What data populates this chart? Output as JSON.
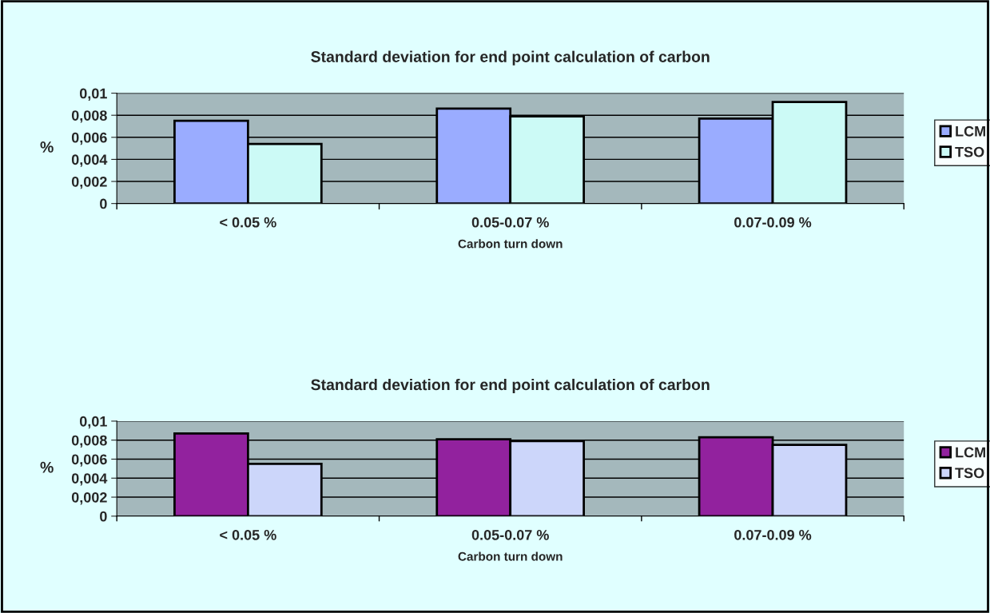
{
  "chart_data": [
    {
      "type": "bar",
      "title": "Standard deviation for end point calculation of carbon",
      "xlabel": "Carbon turn down",
      "ylabel": "%",
      "categories": [
        "< 0.05 %",
        "0.05-0.07 %",
        "0.07-0.09 %"
      ],
      "series": [
        {
          "name": "LCM",
          "color": "#9aacff",
          "values": [
            0.0075,
            0.0086,
            0.0077
          ]
        },
        {
          "name": "TSO",
          "color": "#ccfaf6",
          "values": [
            0.0054,
            0.0079,
            0.0092
          ]
        }
      ],
      "ylim": [
        0,
        0.01
      ],
      "yticks": [
        0,
        {
          "value": 0.002,
          "label": "0,002"
        },
        {
          "value": 0.004,
          "label": "0,004"
        },
        {
          "value": 0.006,
          "label": "0,006"
        },
        {
          "value": 0.008,
          "label": "0,008"
        },
        {
          "value": 0.01,
          "label": "0,01"
        }
      ],
      "grid": "y",
      "legend": "right"
    },
    {
      "type": "bar",
      "title": "Standard deviation for end point calculation of carbon",
      "xlabel": "Carbon turn down",
      "ylabel": "%",
      "categories": [
        "< 0.05 %",
        "0.05-0.07 %",
        "0.07-0.09 %"
      ],
      "series": [
        {
          "name": "LCM",
          "color": "#92229e",
          "values": [
            0.0087,
            0.0081,
            0.0083
          ]
        },
        {
          "name": "TSO",
          "color": "#ccd6fa",
          "values": [
            0.0055,
            0.0079,
            0.0075
          ]
        }
      ],
      "ylim": [
        0,
        0.01
      ],
      "yticks": [
        0,
        {
          "value": 0.002,
          "label": "0,002"
        },
        {
          "value": 0.004,
          "label": "0,004"
        },
        {
          "value": 0.006,
          "label": "0,006"
        },
        {
          "value": 0.008,
          "label": "0,008"
        },
        {
          "value": 0.01,
          "label": "0,01"
        }
      ],
      "grid": "y",
      "legend": "right"
    }
  ]
}
